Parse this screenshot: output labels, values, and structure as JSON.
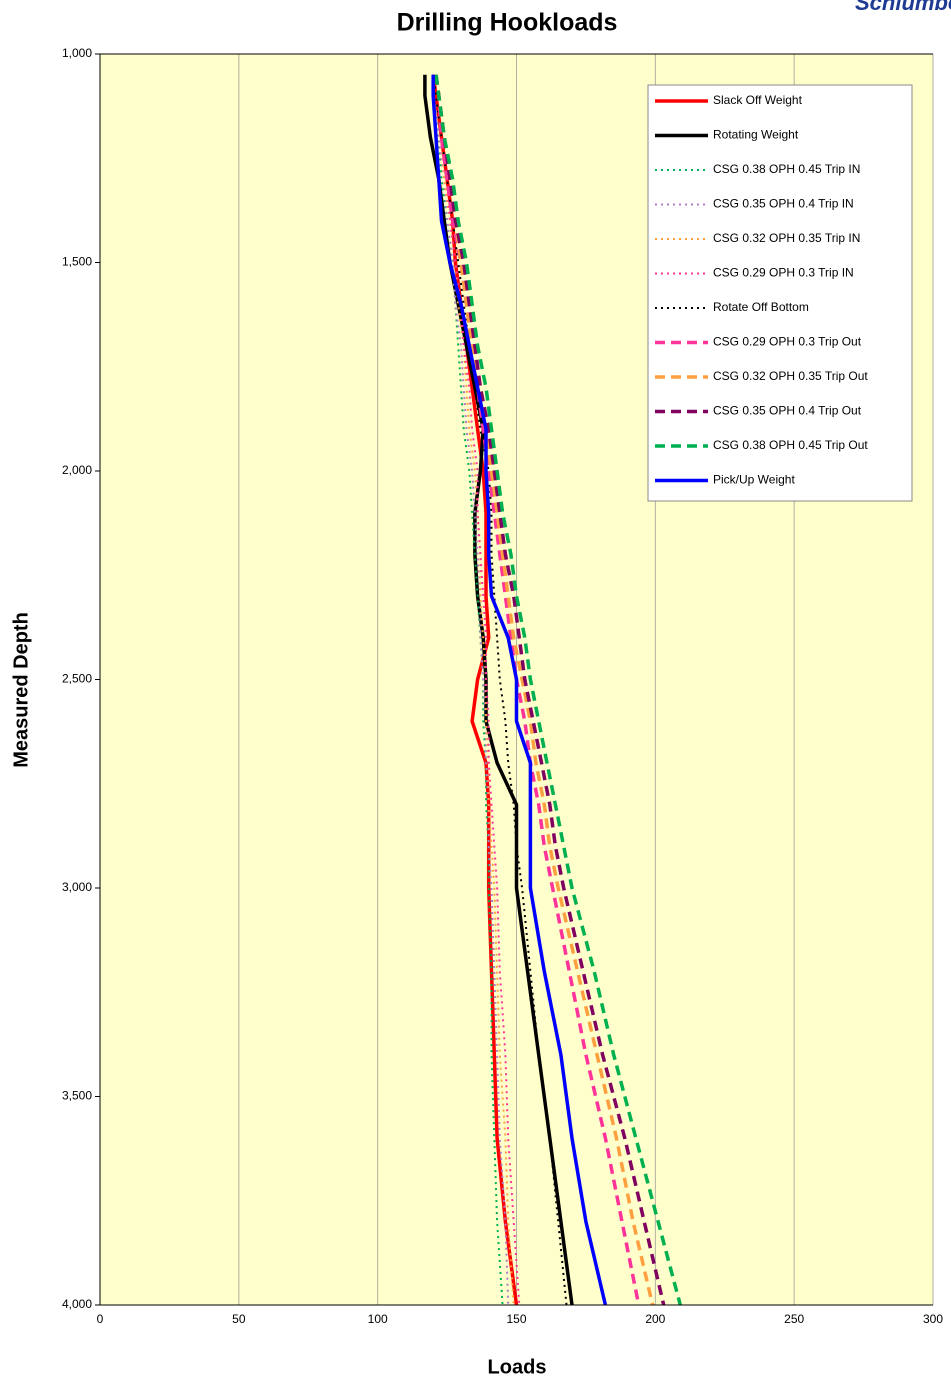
{
  "chart_data": {
    "type": "line",
    "title": "Drilling Hookloads",
    "logo": "Schlumberger",
    "xlabel": "Loads",
    "ylabel": "Measured Depth",
    "xlim": [
      0,
      300
    ],
    "xticks": [
      0,
      50,
      100,
      150,
      200,
      250,
      300
    ],
    "ylim": [
      1000,
      4000
    ],
    "y_inverted": true,
    "yticks": [
      {
        "value": 1000,
        "label": "1,000"
      },
      {
        "value": 1500,
        "label": "1,500"
      },
      {
        "value": 2000,
        "label": "2,000"
      },
      {
        "value": 2500,
        "label": "2,500"
      },
      {
        "value": 3000,
        "label": "3,000"
      },
      {
        "value": 3500,
        "label": "3,500"
      },
      {
        "value": 4000,
        "label": "4,000"
      }
    ],
    "grid": "x",
    "legend": "upper right",
    "y": [
      1050,
      1100,
      1200,
      1300,
      1400,
      1500,
      1600,
      1700,
      1800,
      1900,
      2000,
      2100,
      2200,
      2300,
      2400,
      2500,
      2600,
      2700,
      2800,
      2900,
      3000,
      3200,
      3400,
      3600,
      3800,
      4000
    ],
    "series": [
      {
        "name": "Slack Off Weight",
        "color": "#ff0000",
        "dash": "solid",
        "values": [
          120,
          121,
          123,
          125,
          127,
          128,
          130,
          132,
          134,
          136,
          138,
          139,
          139,
          139,
          140,
          136,
          134,
          139,
          140,
          140,
          140,
          141,
          142,
          143,
          146,
          150
        ]
      },
      {
        "name": "Rotating Weight",
        "color": "#000000",
        "dash": "solid",
        "values": [
          117,
          117,
          119,
          122,
          124,
          126,
          129,
          132,
          135,
          138,
          137,
          135,
          135,
          136,
          138,
          139,
          139,
          143,
          150,
          150,
          150,
          154,
          158,
          162,
          166,
          170
        ]
      },
      {
        "name": "CSG 0.38 OPH 0.45 Trip IN",
        "color": "#00b050",
        "dash": "dotted",
        "values": [
          120,
          120,
          122,
          123,
          125,
          127,
          128,
          129,
          130,
          131,
          133,
          134,
          135,
          136,
          137,
          138,
          138,
          139,
          139,
          140,
          140,
          141,
          141,
          142,
          143,
          145
        ]
      },
      {
        "name": "CSG 0.35 OPH 0.4 Trip IN",
        "color": "#b07cc6",
        "dash": "dotted",
        "values": [
          120,
          121,
          122,
          124,
          125,
          127,
          128,
          130,
          131,
          132,
          134,
          135,
          136,
          137,
          137,
          138,
          139,
          139,
          140,
          140,
          141,
          142,
          143,
          144,
          146,
          147
        ]
      },
      {
        "name": "CSG 0.32 OPH 0.35 Trip IN",
        "color": "#ffa040",
        "dash": "dotted",
        "values": [
          120,
          121,
          123,
          124,
          126,
          128,
          129,
          131,
          132,
          133,
          135,
          136,
          137,
          137,
          138,
          139,
          139,
          140,
          140,
          141,
          142,
          143,
          144,
          146,
          147,
          149
        ]
      },
      {
        "name": "CSG 0.29 OPH 0.3 Trip IN",
        "color": "#ff3399",
        "dash": "dotted",
        "values": [
          120,
          121,
          123,
          125,
          126,
          128,
          130,
          131,
          133,
          134,
          136,
          136,
          137,
          138,
          139,
          139,
          140,
          140,
          141,
          142,
          143,
          144,
          146,
          147,
          149,
          151
        ]
      },
      {
        "name": "Rotate Off Bottom",
        "color": "#000000",
        "dash": "dotted",
        "values": [
          120,
          121,
          123,
          125,
          127,
          129,
          131,
          133,
          135,
          137,
          140,
          141,
          141,
          142,
          143,
          144,
          146,
          147,
          149,
          150,
          152,
          155,
          158,
          162,
          165,
          168
        ]
      },
      {
        "name": "CSG 0.29 OPH 0.3 Trip Out",
        "color": "#ff3399",
        "dash": "dashed",
        "values": [
          121,
          122,
          123,
          125,
          127,
          130,
          132,
          134,
          136,
          138,
          140,
          142,
          144,
          146,
          148,
          150,
          153,
          155,
          158,
          160,
          163,
          169,
          175,
          182,
          188,
          194
        ]
      },
      {
        "name": "CSG 0.32 OPH 0.35 Trip Out",
        "color": "#ffa040",
        "dash": "dashed",
        "values": [
          121,
          122,
          124,
          126,
          128,
          130,
          132,
          134,
          136,
          139,
          141,
          143,
          145,
          147,
          149,
          152,
          155,
          157,
          160,
          162,
          165,
          172,
          179,
          186,
          192,
          199
        ]
      },
      {
        "name": "CSG 0.35 OPH 0.4 Trip Out",
        "color": "#800060",
        "dash": "dashed",
        "values": [
          121,
          122,
          124,
          126,
          128,
          131,
          133,
          135,
          137,
          140,
          142,
          144,
          146,
          149,
          151,
          153,
          156,
          159,
          162,
          164,
          167,
          174,
          181,
          189,
          196,
          203
        ]
      },
      {
        "name": "CSG 0.38 OPH 0.45 Trip Out",
        "color": "#00b050",
        "dash": "dashed",
        "values": [
          121,
          122,
          124,
          127,
          129,
          132,
          134,
          136,
          139,
          141,
          143,
          145,
          148,
          150,
          153,
          155,
          158,
          161,
          164,
          167,
          170,
          178,
          185,
          193,
          201,
          209
        ]
      },
      {
        "name": "Pick/Up Weight",
        "color": "#0000ff",
        "dash": "solid",
        "values": [
          120,
          120,
          121,
          122,
          123,
          126,
          130,
          133,
          136,
          139,
          139,
          140,
          140,
          141,
          147,
          150,
          150,
          155,
          155,
          155,
          155,
          160,
          166,
          170,
          175,
          182
        ]
      }
    ]
  }
}
